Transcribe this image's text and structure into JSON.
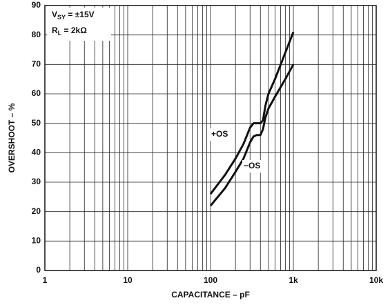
{
  "chart_data": {
    "type": "line",
    "xlabel": "CAPACITANCE – pF",
    "ylabel": "OVERSHOOT – %",
    "annotations": [
      {
        "main": "V",
        "sub": "SY",
        "rest": " = ±15V"
      },
      {
        "main": "R",
        "sub": "L",
        "rest": " = 2kΩ"
      }
    ],
    "x": [
      100,
      150,
      200,
      250,
      300,
      330,
      360,
      400,
      430,
      460,
      500,
      600,
      800,
      1000
    ],
    "series": [
      {
        "name": "+OS",
        "color": "#111111",
        "values": [
          26,
          32.5,
          38,
          43,
          48.5,
          50,
          50,
          50,
          51,
          56,
          60,
          65,
          74,
          81
        ]
      },
      {
        "name": "−OS",
        "color": "#111111",
        "values": [
          22,
          28,
          33.5,
          38,
          43.5,
          45.5,
          46,
          46,
          48,
          52,
          55,
          59,
          65,
          70
        ]
      }
    ],
    "xscale": "log",
    "xlim": [
      1,
      10000
    ],
    "xticks": [
      1,
      10,
      100,
      {
        "value": 1000,
        "label": "1k"
      },
      {
        "value": 10000,
        "label": "10k"
      }
    ],
    "xminor": [
      2,
      3,
      4,
      5,
      6,
      7,
      8,
      9,
      20,
      30,
      40,
      50,
      60,
      70,
      80,
      90,
      200,
      300,
      400,
      500,
      600,
      700,
      800,
      900,
      2000,
      3000,
      4000,
      5000,
      6000,
      7000,
      8000,
      9000
    ],
    "ylim": [
      0,
      90
    ],
    "yticks": [
      0,
      10,
      20,
      30,
      40,
      50,
      60,
      70,
      80,
      90
    ],
    "grid": true
  }
}
